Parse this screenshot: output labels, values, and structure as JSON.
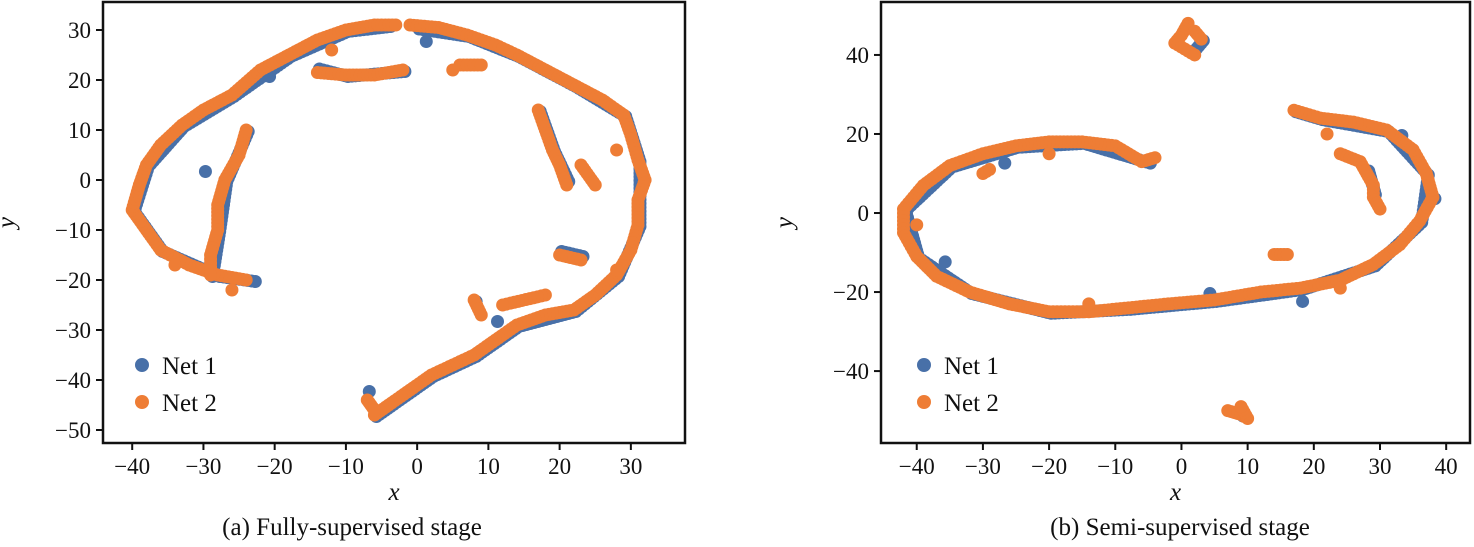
{
  "chart_data": [
    {
      "type": "scatter",
      "caption": "(a) Fully-supervised stage",
      "xlabel": "x",
      "ylabel": "y",
      "xlim": [
        -44.1,
        37.6
      ],
      "ylim": [
        -52.6,
        35.6
      ],
      "xticks": [
        -40,
        -30,
        -20,
        -10,
        0,
        10,
        20,
        30
      ],
      "yticks": [
        30,
        20,
        10,
        0,
        -10,
        -20,
        -30,
        -40,
        -50
      ],
      "legend": "lower-left",
      "series": [
        {
          "name": "Net 1",
          "color": "#4870a8",
          "trails": [
            [
              [
                -23,
                -20
              ],
              [
                -28,
                -19
              ],
              [
                -36,
                -14
              ],
              [
                -40,
                -6
              ],
              [
                -38,
                3
              ],
              [
                -33,
                11
              ],
              [
                -26,
                17
              ],
              [
                -18,
                25
              ],
              [
                -10,
                30
              ],
              [
                -4,
                31
              ]
            ],
            [
              [
                0,
                30.5
              ],
              [
                7,
                29
              ],
              [
                14,
                25
              ],
              [
                22,
                19
              ],
              [
                29,
                13
              ],
              [
                31,
                4
              ],
              [
                31,
                -9
              ],
              [
                28,
                -19
              ],
              [
                22,
                -26
              ],
              [
                14,
                -29
              ],
              [
                8,
                -35
              ],
              [
                2,
                -39
              ],
              [
                -4,
                -45
              ],
              [
                -6,
                -47
              ]
            ],
            [
              [
                -24,
                10
              ],
              [
                -27,
                0
              ],
              [
                -28,
                -10
              ],
              [
                -29,
                -19
              ]
            ],
            [
              [
                -14,
                22.5
              ],
              [
                -10,
                21
              ],
              [
                -2,
                22
              ]
            ],
            [
              [
                17,
                14
              ],
              [
                19,
                6
              ],
              [
                21,
                0
              ]
            ],
            [
              [
                20,
                -14
              ],
              [
                23,
                -15
              ]
            ],
            [
              [
                -7,
                -42
              ]
            ],
            [
              [
                -30,
                2
              ]
            ],
            [
              [
                -21,
                21
              ]
            ],
            [
              [
                1,
                28
              ]
            ],
            [
              [
                26,
                16
              ]
            ],
            [
              [
                11,
                -28
              ]
            ],
            [
              [
                8,
                -24
              ]
            ]
          ]
        },
        {
          "name": "Net 2",
          "color": "#ee7d35",
          "trails": [
            [
              [
                -24,
                -20
              ],
              [
                -28,
                -19
              ],
              [
                -32,
                -17
              ],
              [
                -36,
                -14
              ],
              [
                -38,
                -10
              ],
              [
                -40,
                -6
              ],
              [
                -39,
                -1
              ],
              [
                -38,
                3
              ],
              [
                -36,
                7
              ],
              [
                -33,
                11
              ],
              [
                -30,
                14
              ],
              [
                -26,
                17
              ],
              [
                -22,
                22
              ],
              [
                -18,
                25
              ],
              [
                -14,
                28
              ],
              [
                -10,
                30
              ],
              [
                -6,
                31
              ],
              [
                -3,
                31
              ]
            ],
            [
              [
                -1,
                31
              ],
              [
                3,
                30.5
              ],
              [
                7,
                29
              ],
              [
                11,
                27
              ],
              [
                14,
                25
              ],
              [
                18,
                22
              ],
              [
                22,
                19
              ],
              [
                26,
                16
              ],
              [
                29,
                13
              ],
              [
                30,
                9
              ],
              [
                31,
                4
              ],
              [
                32,
                0
              ],
              [
                31,
                -4
              ],
              [
                31,
                -9
              ],
              [
                30,
                -14
              ],
              [
                28,
                -19
              ],
              [
                25,
                -23
              ],
              [
                22,
                -26
              ],
              [
                18,
                -27
              ],
              [
                14,
                -29
              ],
              [
                11,
                -32
              ],
              [
                8,
                -35
              ],
              [
                5,
                -37
              ],
              [
                2,
                -39
              ],
              [
                -1,
                -42
              ],
              [
                -4,
                -45
              ],
              [
                -6,
                -47
              ]
            ],
            [
              [
                -24,
                10
              ],
              [
                -25,
                5
              ],
              [
                -27,
                0
              ],
              [
                -28,
                -5
              ],
              [
                -28,
                -10
              ],
              [
                -29,
                -15
              ],
              [
                -29,
                -19
              ]
            ],
            [
              [
                -14,
                21.5
              ],
              [
                -10,
                21
              ],
              [
                -6,
                21
              ],
              [
                -2,
                22
              ]
            ],
            [
              [
                6,
                23
              ],
              [
                9,
                23
              ]
            ],
            [
              [
                17,
                14
              ],
              [
                18,
                10
              ],
              [
                19,
                6
              ],
              [
                20,
                3
              ],
              [
                21,
                -1
              ]
            ],
            [
              [
                23,
                3
              ],
              [
                25,
                -1
              ]
            ],
            [
              [
                20,
                -15
              ],
              [
                23,
                -16
              ]
            ],
            [
              [
                18,
                -23
              ],
              [
                12,
                -25
              ]
            ],
            [
              [
                8,
                -24
              ],
              [
                9,
                -27
              ]
            ],
            [
              [
                -7,
                -44
              ],
              [
                -6,
                -46
              ]
            ],
            [
              [
                -26,
                -22
              ]
            ],
            [
              [
                -34,
                -17
              ]
            ],
            [
              [
                -12,
                26
              ]
            ],
            [
              [
                5,
                22
              ]
            ],
            [
              [
                28,
                6
              ]
            ],
            [
              [
                28,
                -18
              ]
            ]
          ]
        }
      ]
    },
    {
      "type": "scatter",
      "caption": "(b) Semi-supervised stage",
      "xlabel": "x",
      "ylabel": "y",
      "xlim": [
        -45.4,
        43.6
      ],
      "ylim": [
        -58.2,
        53.4
      ],
      "xticks": [
        -40,
        -30,
        -20,
        -10,
        0,
        10,
        20,
        30,
        40
      ],
      "yticks": [
        40,
        20,
        0,
        -20,
        -40
      ],
      "legend": "lower-left",
      "series": [
        {
          "name": "Net 1",
          "color": "#4870a8",
          "trails": [
            [
              [
                -5,
                13
              ],
              [
                -15,
                18
              ],
              [
                -25,
                17
              ],
              [
                -35,
                12
              ],
              [
                -42,
                1
              ],
              [
                -40,
                -11
              ],
              [
                -32,
                -20
              ],
              [
                -20,
                -25
              ],
              [
                -8,
                -24
              ],
              [
                5,
                -22
              ],
              [
                18,
                -19
              ],
              [
                29,
                -13
              ],
              [
                36,
                -2
              ],
              [
                37,
                10
              ],
              [
                31,
                21
              ],
              [
                21,
                24
              ],
              [
                17,
                26
              ]
            ],
            [
              [
                28,
                11
              ],
              [
                29,
                5
              ]
            ],
            [
              [
                -36,
                -12
              ]
            ],
            [
              [
                -27,
                13
              ]
            ],
            [
              [
                4,
                -20
              ]
            ],
            [
              [
                18,
                -22
              ]
            ],
            [
              [
                33,
                20
              ]
            ],
            [
              [
                38,
                4
              ]
            ],
            [
              [
                2,
                42
              ],
              [
                3,
                44
              ]
            ],
            [
              [
                9,
                -51
              ]
            ]
          ]
        },
        {
          "name": "Net 2",
          "color": "#ee7d35",
          "trails": [
            [
              [
                -4,
                14
              ],
              [
                -6,
                13
              ],
              [
                -10,
                17
              ],
              [
                -15,
                18
              ],
              [
                -20,
                18
              ],
              [
                -25,
                17
              ],
              [
                -30,
                15
              ],
              [
                -35,
                12
              ],
              [
                -39,
                7
              ],
              [
                -42,
                1
              ],
              [
                -42,
                -5
              ],
              [
                -40,
                -11
              ],
              [
                -37,
                -16
              ],
              [
                -32,
                -20
              ],
              [
                -26,
                -23
              ],
              [
                -20,
                -25
              ],
              [
                -14,
                -25
              ],
              [
                -8,
                -24
              ],
              [
                -2,
                -23
              ],
              [
                5,
                -22
              ],
              [
                12,
                -20
              ],
              [
                18,
                -19
              ],
              [
                24,
                -17
              ],
              [
                29,
                -13
              ],
              [
                33,
                -8
              ],
              [
                36,
                -2
              ],
              [
                38,
                4
              ],
              [
                37,
                10
              ],
              [
                35,
                16
              ],
              [
                31,
                21
              ],
              [
                26,
                23
              ],
              [
                21,
                24
              ],
              [
                17,
                26
              ]
            ],
            [
              [
                24,
                15
              ],
              [
                27,
                13
              ],
              [
                28,
                10
              ],
              [
                29,
                7
              ],
              [
                29,
                4
              ],
              [
                30,
                1
              ]
            ],
            [
              [
                -30,
                10
              ],
              [
                -29,
                11
              ]
            ],
            [
              [
                14,
                -10.5
              ],
              [
                16,
                -10.5
              ]
            ],
            [
              [
                1,
                48
              ],
              [
                0,
                45
              ],
              [
                -1,
                43
              ],
              [
                1,
                41
              ],
              [
                2,
                40
              ]
            ],
            [
              [
                2,
                46
              ],
              [
                3,
                44
              ]
            ],
            [
              [
                7,
                -50
              ],
              [
                9,
                -51
              ],
              [
                10,
                -52
              ],
              [
                9,
                -49
              ]
            ],
            [
              [
                -20,
                15
              ]
            ],
            [
              [
                -14,
                -23
              ]
            ],
            [
              [
                24,
                -19
              ]
            ],
            [
              [
                22,
                20
              ]
            ],
            [
              [
                -40,
                -3
              ]
            ]
          ]
        }
      ]
    }
  ]
}
